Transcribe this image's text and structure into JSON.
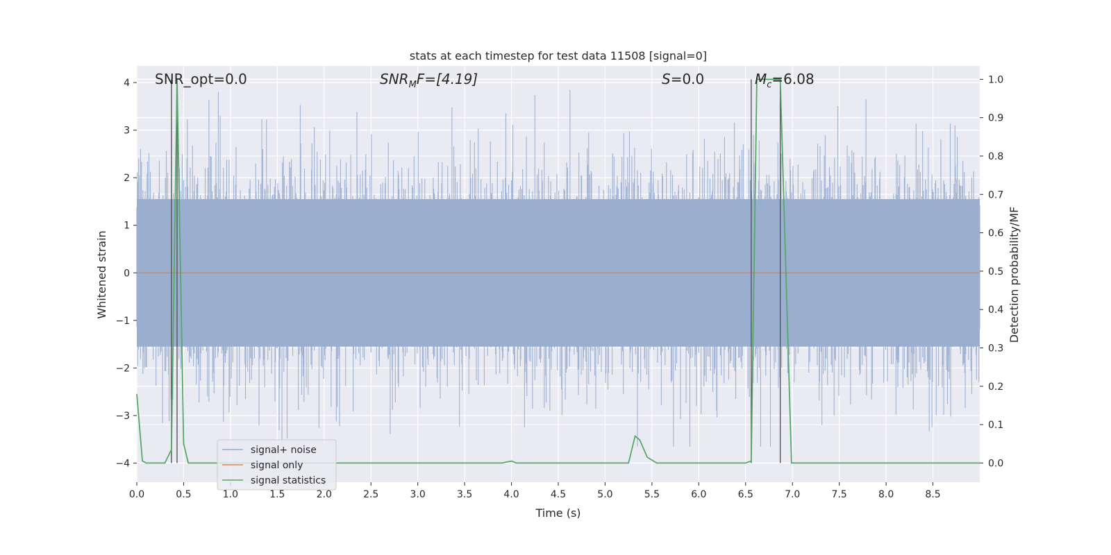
{
  "chart_data": {
    "type": "line",
    "title": "stats at each timestep for test data 11508 [signal=0]",
    "xlabel": "Time (s)",
    "ylabel_left": "Whitened strain",
    "ylabel_right": "Detection probability/MF",
    "xlim": [
      0.0,
      9.0
    ],
    "ylim_left": [
      -4.4,
      4.35
    ],
    "ylim_right": [
      -0.05,
      1.035
    ],
    "x_ticks": [
      0.0,
      0.5,
      1.0,
      1.5,
      2.0,
      2.5,
      3.0,
      3.5,
      4.0,
      4.5,
      5.0,
      5.5,
      6.0,
      6.5,
      7.0,
      7.5,
      8.0,
      8.5
    ],
    "x_tick_labels": [
      "0.0",
      "0.5",
      "1.0",
      "1.5",
      "2.0",
      "2.5",
      "3.0",
      "3.5",
      "4.0",
      "4.5",
      "5.0",
      "5.5",
      "6.0",
      "6.5",
      "7.0",
      "7.5",
      "8.0",
      "8.5"
    ],
    "y_left_ticks": [
      -4,
      -3,
      -2,
      -1,
      0,
      1,
      2,
      3,
      4
    ],
    "y_left_tick_labels": [
      "−4",
      "−3",
      "−2",
      "−1",
      "0",
      "1",
      "2",
      "3",
      "4"
    ],
    "y_right_ticks": [
      0.0,
      0.1,
      0.2,
      0.3,
      0.4,
      0.5,
      0.6,
      0.7,
      0.8,
      0.9,
      1.0
    ],
    "y_right_tick_labels": [
      "0.0",
      "0.1",
      "0.2",
      "0.3",
      "0.4",
      "0.5",
      "0.6",
      "0.7",
      "0.8",
      "0.9",
      "1.0"
    ],
    "grid": true,
    "legend_position": "lower-left",
    "annotations": {
      "snr_opt": "SNR_opt=0.0",
      "snr_mf_main": "SNR",
      "snr_mf_sub": "M",
      "snr_mf_rest": "F=[4.19]",
      "s_main": "S",
      "s_rest": "=0.0",
      "mc_main": "M",
      "mc_sub": "c",
      "mc_rest": "=6.08"
    },
    "vlines_x": [
      0.37,
      0.43,
      6.56,
      6.87
    ],
    "series": [
      {
        "name": "signal+ noise",
        "color": "#9aaed0",
        "axis": "left",
        "envelope": {
          "sigma": 1.0,
          "peak_max": 3.85,
          "peak_min": -3.65
        }
      },
      {
        "name": "signal only",
        "color": "#dd8452",
        "axis": "left",
        "x": [
          0.0,
          9.0
        ],
        "y": [
          0.0,
          0.0
        ]
      },
      {
        "name": "signal statistics",
        "color": "#55a868",
        "axis": "right",
        "x": [
          0.0,
          0.06,
          0.1,
          0.3,
          0.37,
          0.43,
          0.5,
          0.55,
          3.9,
          4.0,
          4.05,
          5.25,
          5.32,
          5.37,
          5.45,
          5.55,
          6.5,
          6.56,
          6.62,
          6.87,
          6.99,
          9.0
        ],
        "y": [
          0.18,
          0.005,
          0.0,
          0.0,
          0.035,
          1.0,
          0.05,
          0.0,
          0.0,
          0.005,
          0.0,
          0.0,
          0.07,
          0.06,
          0.015,
          0.0,
          0.0,
          0.005,
          1.0,
          1.0,
          0.0,
          0.0
        ]
      }
    ]
  }
}
